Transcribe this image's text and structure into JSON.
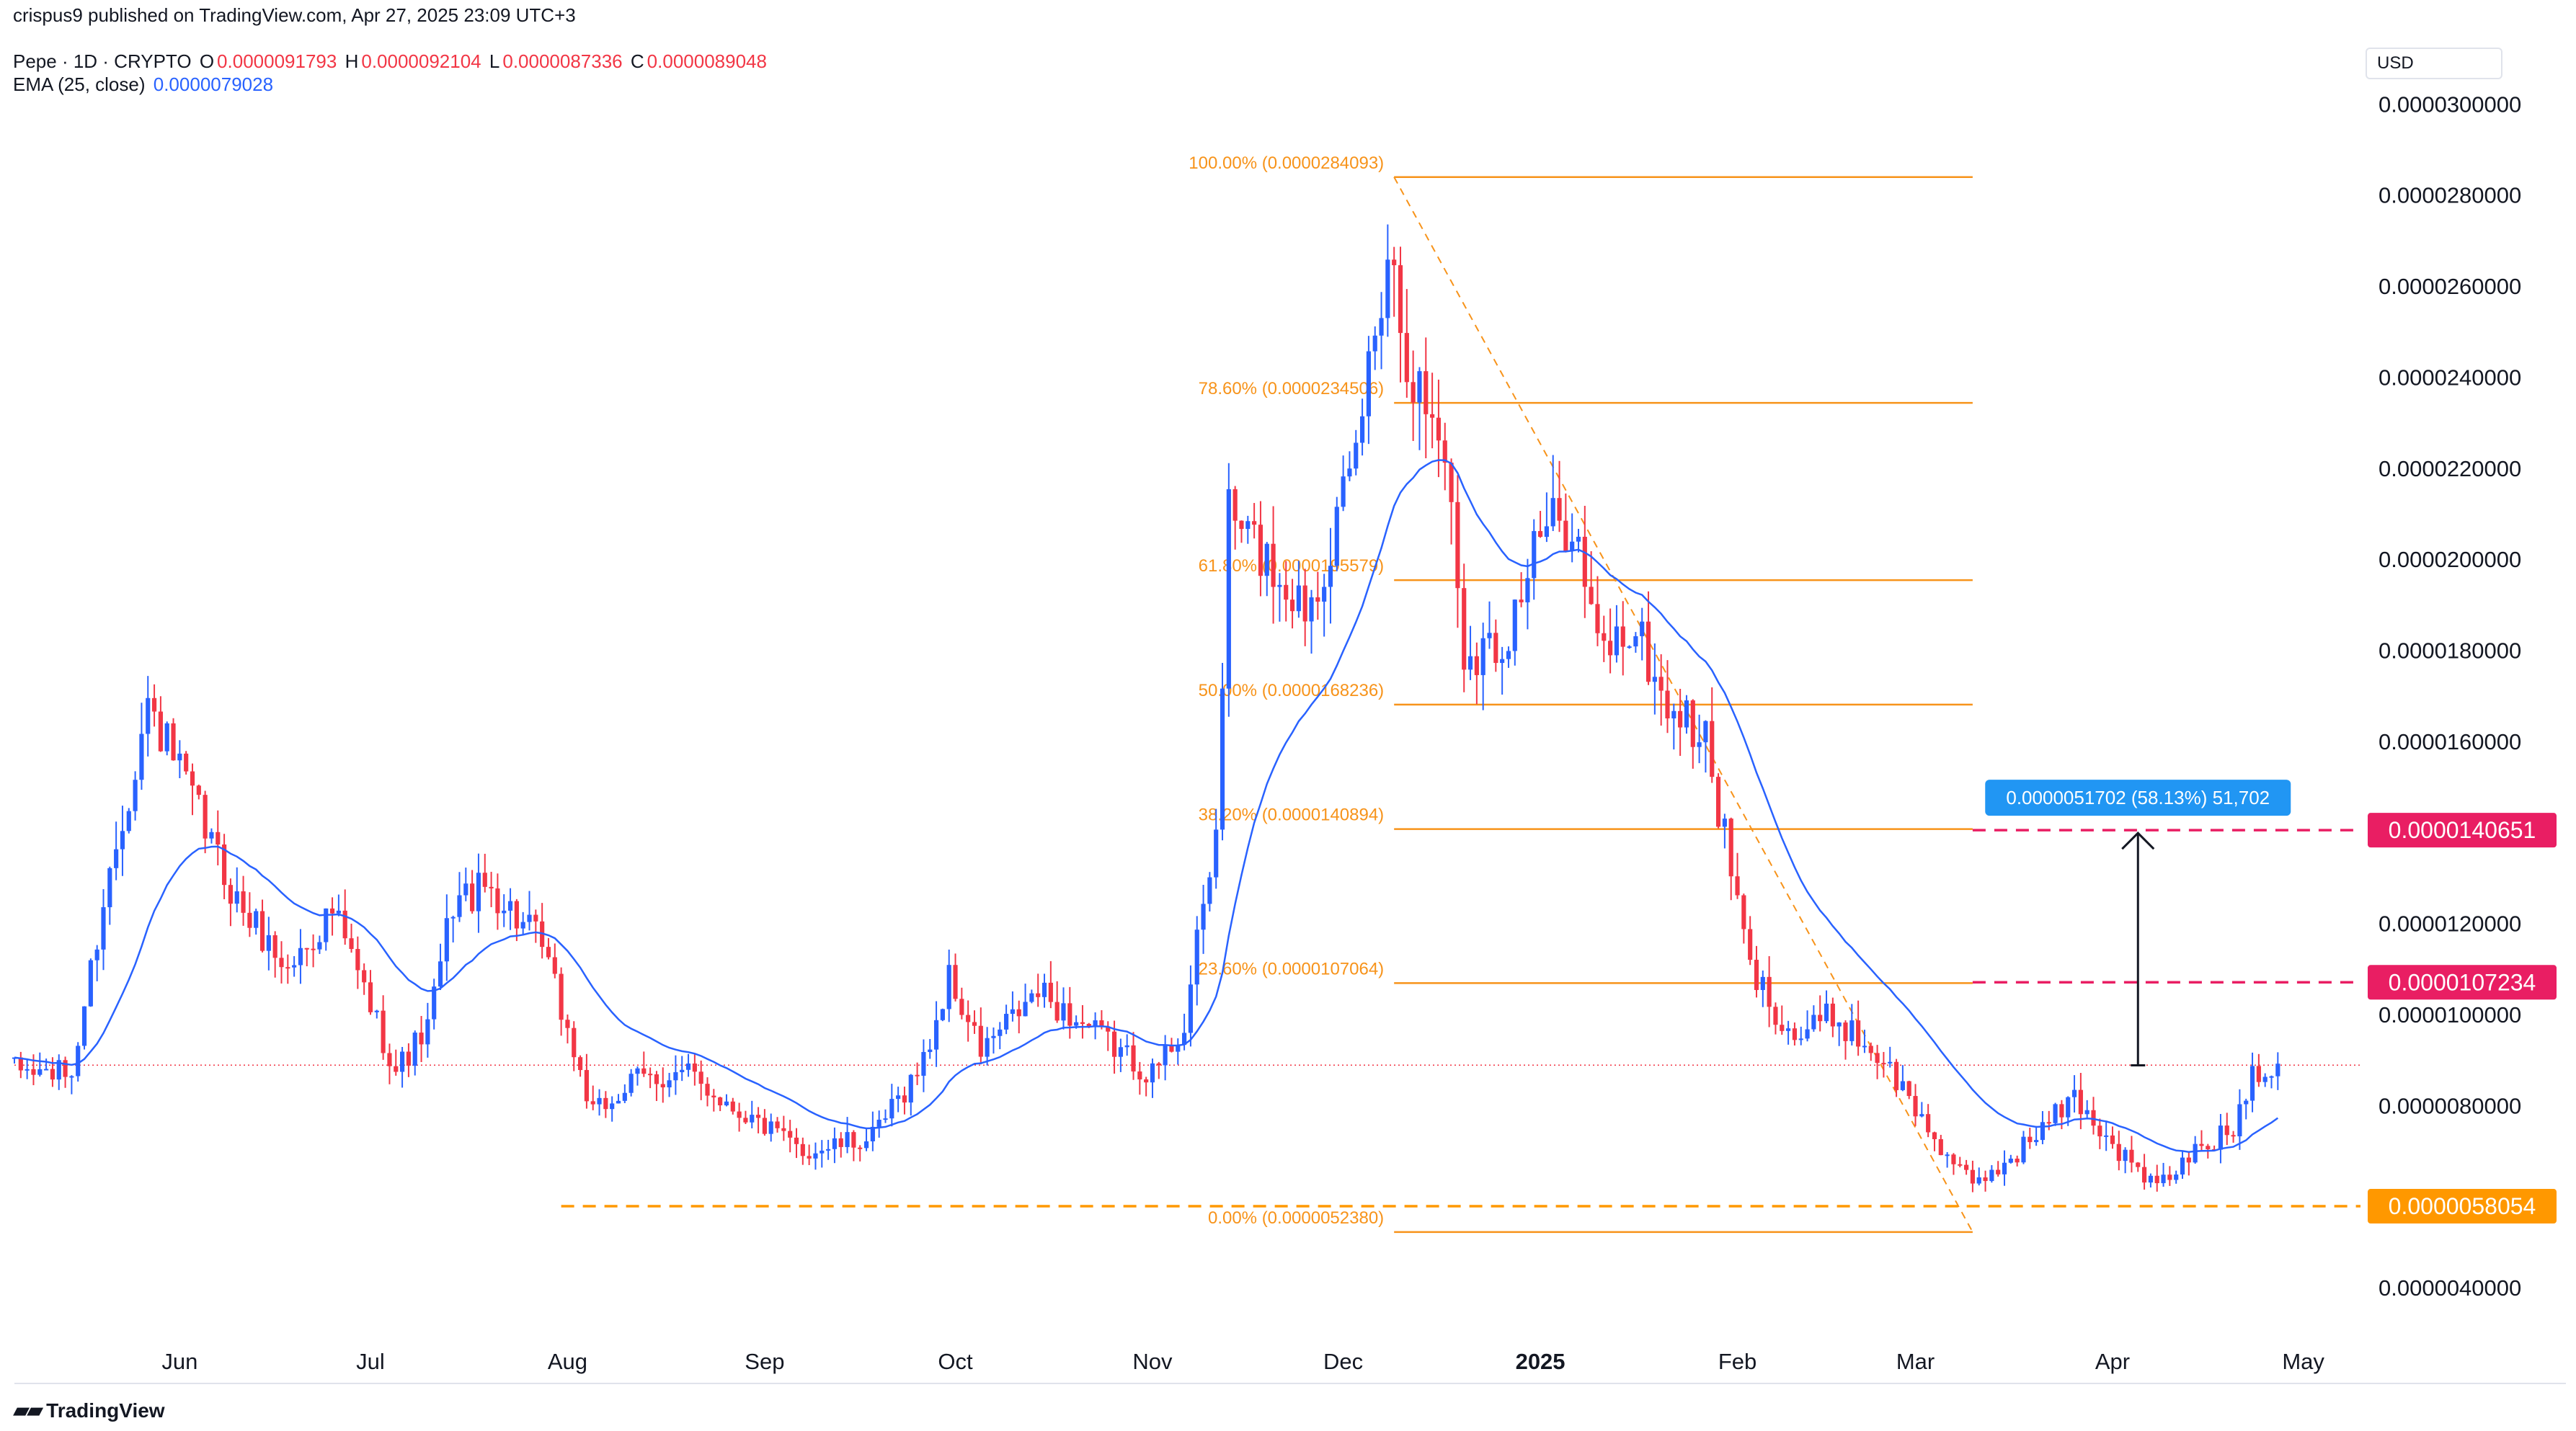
{
  "publisher": "crispus9 published on TradingView.com, Apr 27, 2025 23:09 UTC+3",
  "symbol": "Pepe · 1D · CRYPTO",
  "ohlc": {
    "o_label": "O",
    "o": "0.0000091793",
    "h_label": "H",
    "h": "0.0000092104",
    "l_label": "L",
    "l": "0.0000087336",
    "c_label": "C",
    "c": "0.0000089048"
  },
  "indicator": {
    "label": "EMA (25, close)",
    "value": "0.0000079028"
  },
  "currency": "USD",
  "branding": "TradingView",
  "colors": {
    "up": "#2962ff",
    "down": "#f23645",
    "ema": "#2962ff",
    "fib": "#f7931a",
    "resistance": "#e91e63",
    "support": "#ff9800",
    "measure": "#2196f3"
  },
  "chart_data": {
    "type": "candlestick",
    "title": "Pepe · 1D · CRYPTO",
    "ylim": [
      3.1e-06,
      3.04e-05
    ],
    "y_ticks": [
      {
        "v": 3e-05,
        "label": "0.0000300000"
      },
      {
        "v": 2.8e-05,
        "label": "0.0000280000"
      },
      {
        "v": 2.6e-05,
        "label": "0.0000260000"
      },
      {
        "v": 2.4e-05,
        "label": "0.0000240000"
      },
      {
        "v": 2.2e-05,
        "label": "0.0000220000"
      },
      {
        "v": 2e-05,
        "label": "0.0000200000"
      },
      {
        "v": 1.8e-05,
        "label": "0.0000180000"
      },
      {
        "v": 1.6e-05,
        "label": "0.0000160000"
      },
      {
        "v": 1.2e-05,
        "label": "0.0000120000"
      },
      {
        "v": 1e-05,
        "label": "0.0000100000"
      },
      {
        "v": 8e-06,
        "label": "0.0000080000"
      },
      {
        "v": 4e-06,
        "label": "0.0000040000"
      }
    ],
    "x_range": [
      "2024-05-06",
      "2025-05-10"
    ],
    "x_ticks": [
      {
        "date": "2024-06-01",
        "label": "Jun",
        "bold": false
      },
      {
        "date": "2024-07-01",
        "label": "Jul",
        "bold": false
      },
      {
        "date": "2024-08-01",
        "label": "Aug",
        "bold": false
      },
      {
        "date": "2024-09-01",
        "label": "Sep",
        "bold": false
      },
      {
        "date": "2024-10-01",
        "label": "Oct",
        "bold": false
      },
      {
        "date": "2024-11-01",
        "label": "Nov",
        "bold": false
      },
      {
        "date": "2024-12-01",
        "label": "Dec",
        "bold": false
      },
      {
        "date": "2025-01-01",
        "label": "2025",
        "bold": true
      },
      {
        "date": "2025-02-01",
        "label": "Feb",
        "bold": false
      },
      {
        "date": "2025-03-01",
        "label": "Mar",
        "bold": false
      },
      {
        "date": "2025-04-01",
        "label": "Apr",
        "bold": false
      },
      {
        "date": "2025-05-01",
        "label": "May",
        "bold": false
      }
    ],
    "price_anchors": [
      [
        "2024-05-06",
        8.8e-06
      ],
      [
        "2024-05-15",
        8.7e-06
      ],
      [
        "2024-05-20",
        1.25e-05
      ],
      [
        "2024-05-27",
        1.68e-05
      ],
      [
        "2024-06-02",
        1.5e-05
      ],
      [
        "2024-06-10",
        1.25e-05
      ],
      [
        "2024-06-18",
        1.1e-05
      ],
      [
        "2024-06-25",
        1.23e-05
      ],
      [
        "2024-07-05",
        8.8e-06
      ],
      [
        "2024-07-10",
        9.7e-06
      ],
      [
        "2024-07-14",
        1.25e-05
      ],
      [
        "2024-07-20",
        1.28e-05
      ],
      [
        "2024-07-28",
        1.15e-05
      ],
      [
        "2024-08-05",
        7.8e-06
      ],
      [
        "2024-08-12",
        8.6e-06
      ],
      [
        "2024-08-20",
        8.7e-06
      ],
      [
        "2024-08-27",
        8e-06
      ],
      [
        "2024-09-07",
        7e-06
      ],
      [
        "2024-09-18",
        7.3e-06
      ],
      [
        "2024-09-26",
        9e-06
      ],
      [
        "2024-09-30",
        1.08e-05
      ],
      [
        "2024-10-05",
        9.2e-06
      ],
      [
        "2024-10-14",
        1.05e-05
      ],
      [
        "2024-10-22",
        9.7e-06
      ],
      [
        "2024-11-01",
        8.7e-06
      ],
      [
        "2024-11-06",
        9.8e-06
      ],
      [
        "2024-11-11",
        1.4e-05
      ],
      [
        "2024-11-13",
        2.1e-05
      ],
      [
        "2024-11-19",
        2e-05
      ],
      [
        "2024-11-25",
        1.9e-05
      ],
      [
        "2024-12-02",
        2.15e-05
      ],
      [
        "2024-12-08",
        2.7e-05
      ],
      [
        "2024-12-12",
        2.4e-05
      ],
      [
        "2024-12-17",
        2.25e-05
      ],
      [
        "2024-12-20",
        1.8e-05
      ],
      [
        "2024-12-26",
        1.82e-05
      ],
      [
        "2025-01-01",
        2.05e-05
      ],
      [
        "2025-01-06",
        2.1e-05
      ],
      [
        "2025-01-10",
        1.8e-05
      ],
      [
        "2025-01-16",
        1.85e-05
      ],
      [
        "2025-01-20",
        1.7e-05
      ],
      [
        "2025-01-27",
        1.6e-05
      ],
      [
        "2025-02-03",
        1.1e-05
      ],
      [
        "2025-02-10",
        9.5e-06
      ],
      [
        "2025-02-16",
        1e-05
      ],
      [
        "2025-02-24",
        9e-06
      ],
      [
        "2025-03-03",
        7.5e-06
      ],
      [
        "2025-03-10",
        6.2e-06
      ],
      [
        "2025-03-17",
        7e-06
      ],
      [
        "2025-03-26",
        8.2e-06
      ],
      [
        "2025-04-02",
        7e-06
      ],
      [
        "2025-04-08",
        6.2e-06
      ],
      [
        "2025-04-14",
        7e-06
      ],
      [
        "2025-04-20",
        7.5e-06
      ],
      [
        "2025-04-23",
        8.8e-06
      ],
      [
        "2025-04-27",
        8.9e-06
      ]
    ],
    "ema_series": {
      "name": "EMA (25, close)",
      "period": 25
    },
    "fib_retracement": {
      "start_date": "2024-12-09",
      "end_date": "2025-03-10",
      "levels": [
        {
          "label": "100.00% (0.0000284093)",
          "value": 2.84093e-05
        },
        {
          "label": "78.60% (0.0000234506)",
          "value": 2.34506e-05
        },
        {
          "label": "61.80% (0.0000195579)",
          "value": 1.95579e-05
        },
        {
          "label": "50.00% (0.0000168236)",
          "value": 1.68236e-05
        },
        {
          "label": "38.20% (0.0000140894)",
          "value": 1.40894e-05
        },
        {
          "label": "23.60% (0.0000107064)",
          "value": 1.07064e-05
        },
        {
          "label": "0.00% (0.0000052380)",
          "value": 5.238e-06
        }
      ]
    },
    "horizontal_lines": [
      {
        "value": 1.40651e-05,
        "label": "0.0000140651",
        "color": "#e91e63",
        "start_date": "2025-03-10"
      },
      {
        "value": 1.07234e-05,
        "label": "0.0000107234",
        "color": "#e91e63",
        "start_date": "2025-03-10"
      },
      {
        "value": 5.8054e-06,
        "label": "0.0000058054",
        "color": "#ff9800",
        "start_date": "2024-07-31"
      }
    ],
    "last_price": 8.9048e-06,
    "measure": {
      "date": "2025-04-05",
      "from": 8.9e-06,
      "to": 1.40651e-05,
      "label": "0.0000051702 (58.13%) 51,702"
    }
  }
}
